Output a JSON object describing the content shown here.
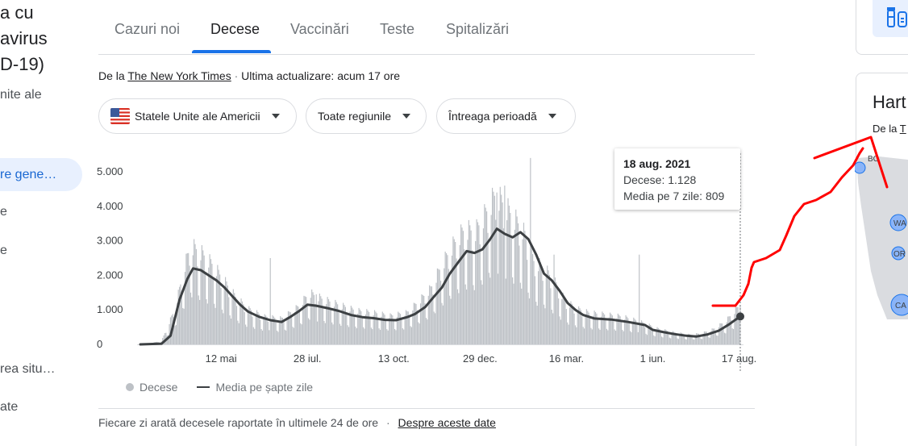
{
  "left": {
    "title_lines": [
      "a cu",
      "avirus",
      "D-19)"
    ],
    "subtitle": "nite ale",
    "nav_active": "re gene…",
    "nav_items": [
      "e",
      "e",
      "rea situ…",
      "ate"
    ]
  },
  "tabs": [
    {
      "label": "Cazuri noi",
      "active": false
    },
    {
      "label": "Decese",
      "active": true
    },
    {
      "label": "Vaccinări",
      "active": false
    },
    {
      "label": "Teste",
      "active": false
    },
    {
      "label": "Spitalizări",
      "active": false
    }
  ],
  "source": {
    "prefix": "De la",
    "name": "The New York Times",
    "separator": "·",
    "updated": "Ultima actualizare: acum 17 ore"
  },
  "filters": {
    "country": "Statele Unite ale Americii",
    "region": "Toate regiunile",
    "period": "Întreaga perioadă"
  },
  "tooltip": {
    "date": "18 aug. 2021",
    "deaths": "Decese: 1.128",
    "avg": "Media pe 7 zile: 809"
  },
  "legend": {
    "bars": "Decese",
    "line": "Media pe șapte zile"
  },
  "footnote": {
    "text": "Fiecare zi arată decesele raportate în ultimele 24 de ore",
    "separator": "·",
    "link": "Despre aceste date"
  },
  "right": {
    "map_title": "Hart",
    "map_source_prefix": "De la",
    "map_source_link": "T",
    "state_labels": [
      "BC",
      "WA",
      "OR",
      "CA"
    ]
  },
  "colors": {
    "bars": "#bdc1c6",
    "line": "#3c4043",
    "accent": "#1a73e8",
    "annotation": "#ff0000"
  },
  "icons": [
    "flag-us-icon",
    "dropdown-caret-icon",
    "vaccine-icon"
  ],
  "chart_data": {
    "type": "bar",
    "ylim": [
      0,
      5000
    ],
    "yticks": [
      0,
      1000,
      2000,
      3000,
      4000,
      5000
    ],
    "ytick_labels": [
      "0",
      "1.000",
      "2.000",
      "3.000",
      "4.000",
      "5.000"
    ],
    "x_range": [
      "2020-03-01",
      "2021-08-18"
    ],
    "xticks": [
      {
        "date": "2020-05-12",
        "label": "12 mai"
      },
      {
        "date": "2020-07-28",
        "label": "28 iul."
      },
      {
        "date": "2020-10-13",
        "label": "13 oct."
      },
      {
        "date": "2020-12-29",
        "label": "29 dec."
      },
      {
        "date": "2021-03-16",
        "label": "16 mar."
      },
      {
        "date": "2021-06-01",
        "label": "1 iun."
      },
      {
        "date": "2021-08-17",
        "label": "17 aug."
      }
    ],
    "series": [
      {
        "name": "Decese",
        "kind": "bar",
        "anchors": [
          [
            "2020-03-01",
            0
          ],
          [
            "2020-03-20",
            80
          ],
          [
            "2020-04-01",
            900
          ],
          [
            "2020-04-10",
            2000
          ],
          [
            "2020-04-15",
            2500
          ],
          [
            "2020-04-25",
            2300
          ],
          [
            "2020-05-05",
            2000
          ],
          [
            "2020-05-15",
            1600
          ],
          [
            "2020-05-25",
            1200
          ],
          [
            "2020-06-05",
            900
          ],
          [
            "2020-06-20",
            700
          ],
          [
            "2020-07-05",
            650
          ],
          [
            "2020-07-20",
            950
          ],
          [
            "2020-07-30",
            1300
          ],
          [
            "2020-08-10",
            1150
          ],
          [
            "2020-08-25",
            1000
          ],
          [
            "2020-09-10",
            850
          ],
          [
            "2020-09-25",
            800
          ],
          [
            "2020-10-10",
            720
          ],
          [
            "2020-10-25",
            800
          ],
          [
            "2020-11-05",
            1100
          ],
          [
            "2020-11-15",
            1400
          ],
          [
            "2020-11-25",
            2000
          ],
          [
            "2020-12-05",
            2500
          ],
          [
            "2020-12-15",
            2900
          ],
          [
            "2020-12-25",
            2850
          ],
          [
            "2021-01-05",
            3400
          ],
          [
            "2021-01-12",
            3800
          ],
          [
            "2021-01-20",
            3500
          ],
          [
            "2021-01-28",
            3200
          ],
          [
            "2021-02-05",
            2900
          ],
          [
            "2021-02-15",
            2100
          ],
          [
            "2021-02-25",
            1900
          ],
          [
            "2021-03-05",
            1600
          ],
          [
            "2021-03-15",
            1100
          ],
          [
            "2021-03-25",
            900
          ],
          [
            "2021-04-05",
            800
          ],
          [
            "2021-04-20",
            750
          ],
          [
            "2021-05-05",
            700
          ],
          [
            "2021-05-20",
            580
          ],
          [
            "2021-06-05",
            400
          ],
          [
            "2021-06-20",
            300
          ],
          [
            "2021-07-05",
            240
          ],
          [
            "2021-07-15",
            280
          ],
          [
            "2021-07-25",
            380
          ],
          [
            "2021-08-05",
            580
          ],
          [
            "2021-08-18",
            1000
          ]
        ],
        "spikes": [
          [
            "2021-01-13",
            4400
          ],
          [
            "2021-01-20",
            4600
          ],
          [
            "2021-02-12",
            5400
          ],
          [
            "2020-08-05",
            1450
          ],
          [
            "2020-06-25",
            2500
          ],
          [
            "2021-03-05",
            2600
          ],
          [
            "2021-05-20",
            2600
          ],
          [
            "2021-08-18",
            1128
          ]
        ]
      },
      {
        "name": "Media pe șapte zile",
        "kind": "line",
        "points": [
          [
            "2020-03-01",
            0
          ],
          [
            "2020-03-20",
            20
          ],
          [
            "2020-03-28",
            250
          ],
          [
            "2020-04-05",
            1300
          ],
          [
            "2020-04-12",
            1900
          ],
          [
            "2020-04-17",
            2200
          ],
          [
            "2020-04-24",
            2150
          ],
          [
            "2020-05-01",
            2000
          ],
          [
            "2020-05-08",
            1850
          ],
          [
            "2020-05-15",
            1650
          ],
          [
            "2020-05-22",
            1400
          ],
          [
            "2020-05-29",
            1150
          ],
          [
            "2020-06-05",
            950
          ],
          [
            "2020-06-15",
            800
          ],
          [
            "2020-06-25",
            700
          ],
          [
            "2020-07-05",
            650
          ],
          [
            "2020-07-12",
            780
          ],
          [
            "2020-07-20",
            950
          ],
          [
            "2020-07-28",
            1150
          ],
          [
            "2020-08-05",
            1120
          ],
          [
            "2020-08-15",
            1050
          ],
          [
            "2020-08-25",
            970
          ],
          [
            "2020-09-05",
            850
          ],
          [
            "2020-09-15",
            790
          ],
          [
            "2020-09-25",
            760
          ],
          [
            "2020-10-05",
            710
          ],
          [
            "2020-10-15",
            700
          ],
          [
            "2020-10-25",
            790
          ],
          [
            "2020-11-01",
            880
          ],
          [
            "2020-11-10",
            1080
          ],
          [
            "2020-11-17",
            1350
          ],
          [
            "2020-11-25",
            1650
          ],
          [
            "2020-12-02",
            2050
          ],
          [
            "2020-12-10",
            2400
          ],
          [
            "2020-12-17",
            2700
          ],
          [
            "2020-12-24",
            2650
          ],
          [
            "2020-12-31",
            2750
          ],
          [
            "2021-01-07",
            3050
          ],
          [
            "2021-01-13",
            3350
          ],
          [
            "2021-01-20",
            3200
          ],
          [
            "2021-01-27",
            3100
          ],
          [
            "2021-02-03",
            3250
          ],
          [
            "2021-02-10",
            3050
          ],
          [
            "2021-02-17",
            2600
          ],
          [
            "2021-02-24",
            2050
          ],
          [
            "2021-03-03",
            1850
          ],
          [
            "2021-03-10",
            1550
          ],
          [
            "2021-03-17",
            1200
          ],
          [
            "2021-03-24",
            1000
          ],
          [
            "2021-03-31",
            850
          ],
          [
            "2021-04-10",
            750
          ],
          [
            "2021-04-25",
            720
          ],
          [
            "2021-05-10",
            650
          ],
          [
            "2021-05-25",
            560
          ],
          [
            "2021-06-01",
            420
          ],
          [
            "2021-06-10",
            360
          ],
          [
            "2021-06-20",
            300
          ],
          [
            "2021-07-01",
            250
          ],
          [
            "2021-07-10",
            230
          ],
          [
            "2021-07-20",
            290
          ],
          [
            "2021-07-30",
            400
          ],
          [
            "2021-08-08",
            580
          ],
          [
            "2021-08-14",
            720
          ],
          [
            "2021-08-18",
            809
          ]
        ]
      }
    ],
    "highlight": {
      "date": "2021-08-18",
      "deaths": 1128,
      "avg": 809
    },
    "legend_position": "bottom-left",
    "grid": false
  }
}
